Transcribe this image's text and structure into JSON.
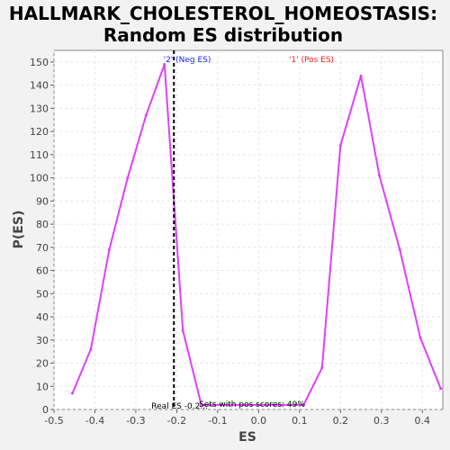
{
  "chart_data": {
    "type": "line",
    "title": [
      "HALLMARK_CHOLESTEROL_HOMEOSTASIS:",
      "Random ES distribution"
    ],
    "xlabel": "ES",
    "ylabel": "P(ES)",
    "xlim": [
      -0.5,
      0.45
    ],
    "ylim": [
      0,
      155
    ],
    "x_ticks": [
      "-0.5",
      "-0.4",
      "-0.3",
      "-0.2",
      "-0.1",
      "0.0",
      "0.1",
      "0.2",
      "0.3",
      "0.4"
    ],
    "x_tick_values": [
      -0.5,
      -0.4,
      -0.3,
      -0.2,
      -0.1,
      0.0,
      0.1,
      0.2,
      0.3,
      0.4
    ],
    "y_ticks": [
      0,
      10,
      20,
      30,
      40,
      50,
      60,
      70,
      80,
      90,
      100,
      110,
      120,
      130,
      140,
      150
    ],
    "grid": true,
    "series": [
      {
        "color": "#e040fb",
        "x": [
          -0.455,
          -0.41,
          -0.365,
          -0.32,
          -0.275,
          -0.23,
          -0.185,
          -0.14,
          0.11,
          0.155,
          0.2,
          0.25,
          0.295,
          0.345,
          0.395,
          0.445
        ],
        "y": [
          7,
          26,
          69,
          100,
          127,
          149,
          34,
          2,
          2,
          18,
          114,
          144,
          101,
          69,
          31,
          9
        ]
      }
    ],
    "real_es": {
      "x": -0.207,
      "label": "Real ES -0.2..."
    },
    "annotations": {
      "neg": {
        "text": "'2' (Neg ES)",
        "color": "#1a1aff"
      },
      "pos": {
        "text": "'1' (Pos ES)",
        "color": "#ff1a1a"
      },
      "pos_scores": "Sets with pos scores: 49%"
    },
    "colors": {
      "background": "#f2f2f2",
      "plot_bg": "#ffffff",
      "grid": "#e6e6e6",
      "real_es_line": "#000000"
    }
  }
}
